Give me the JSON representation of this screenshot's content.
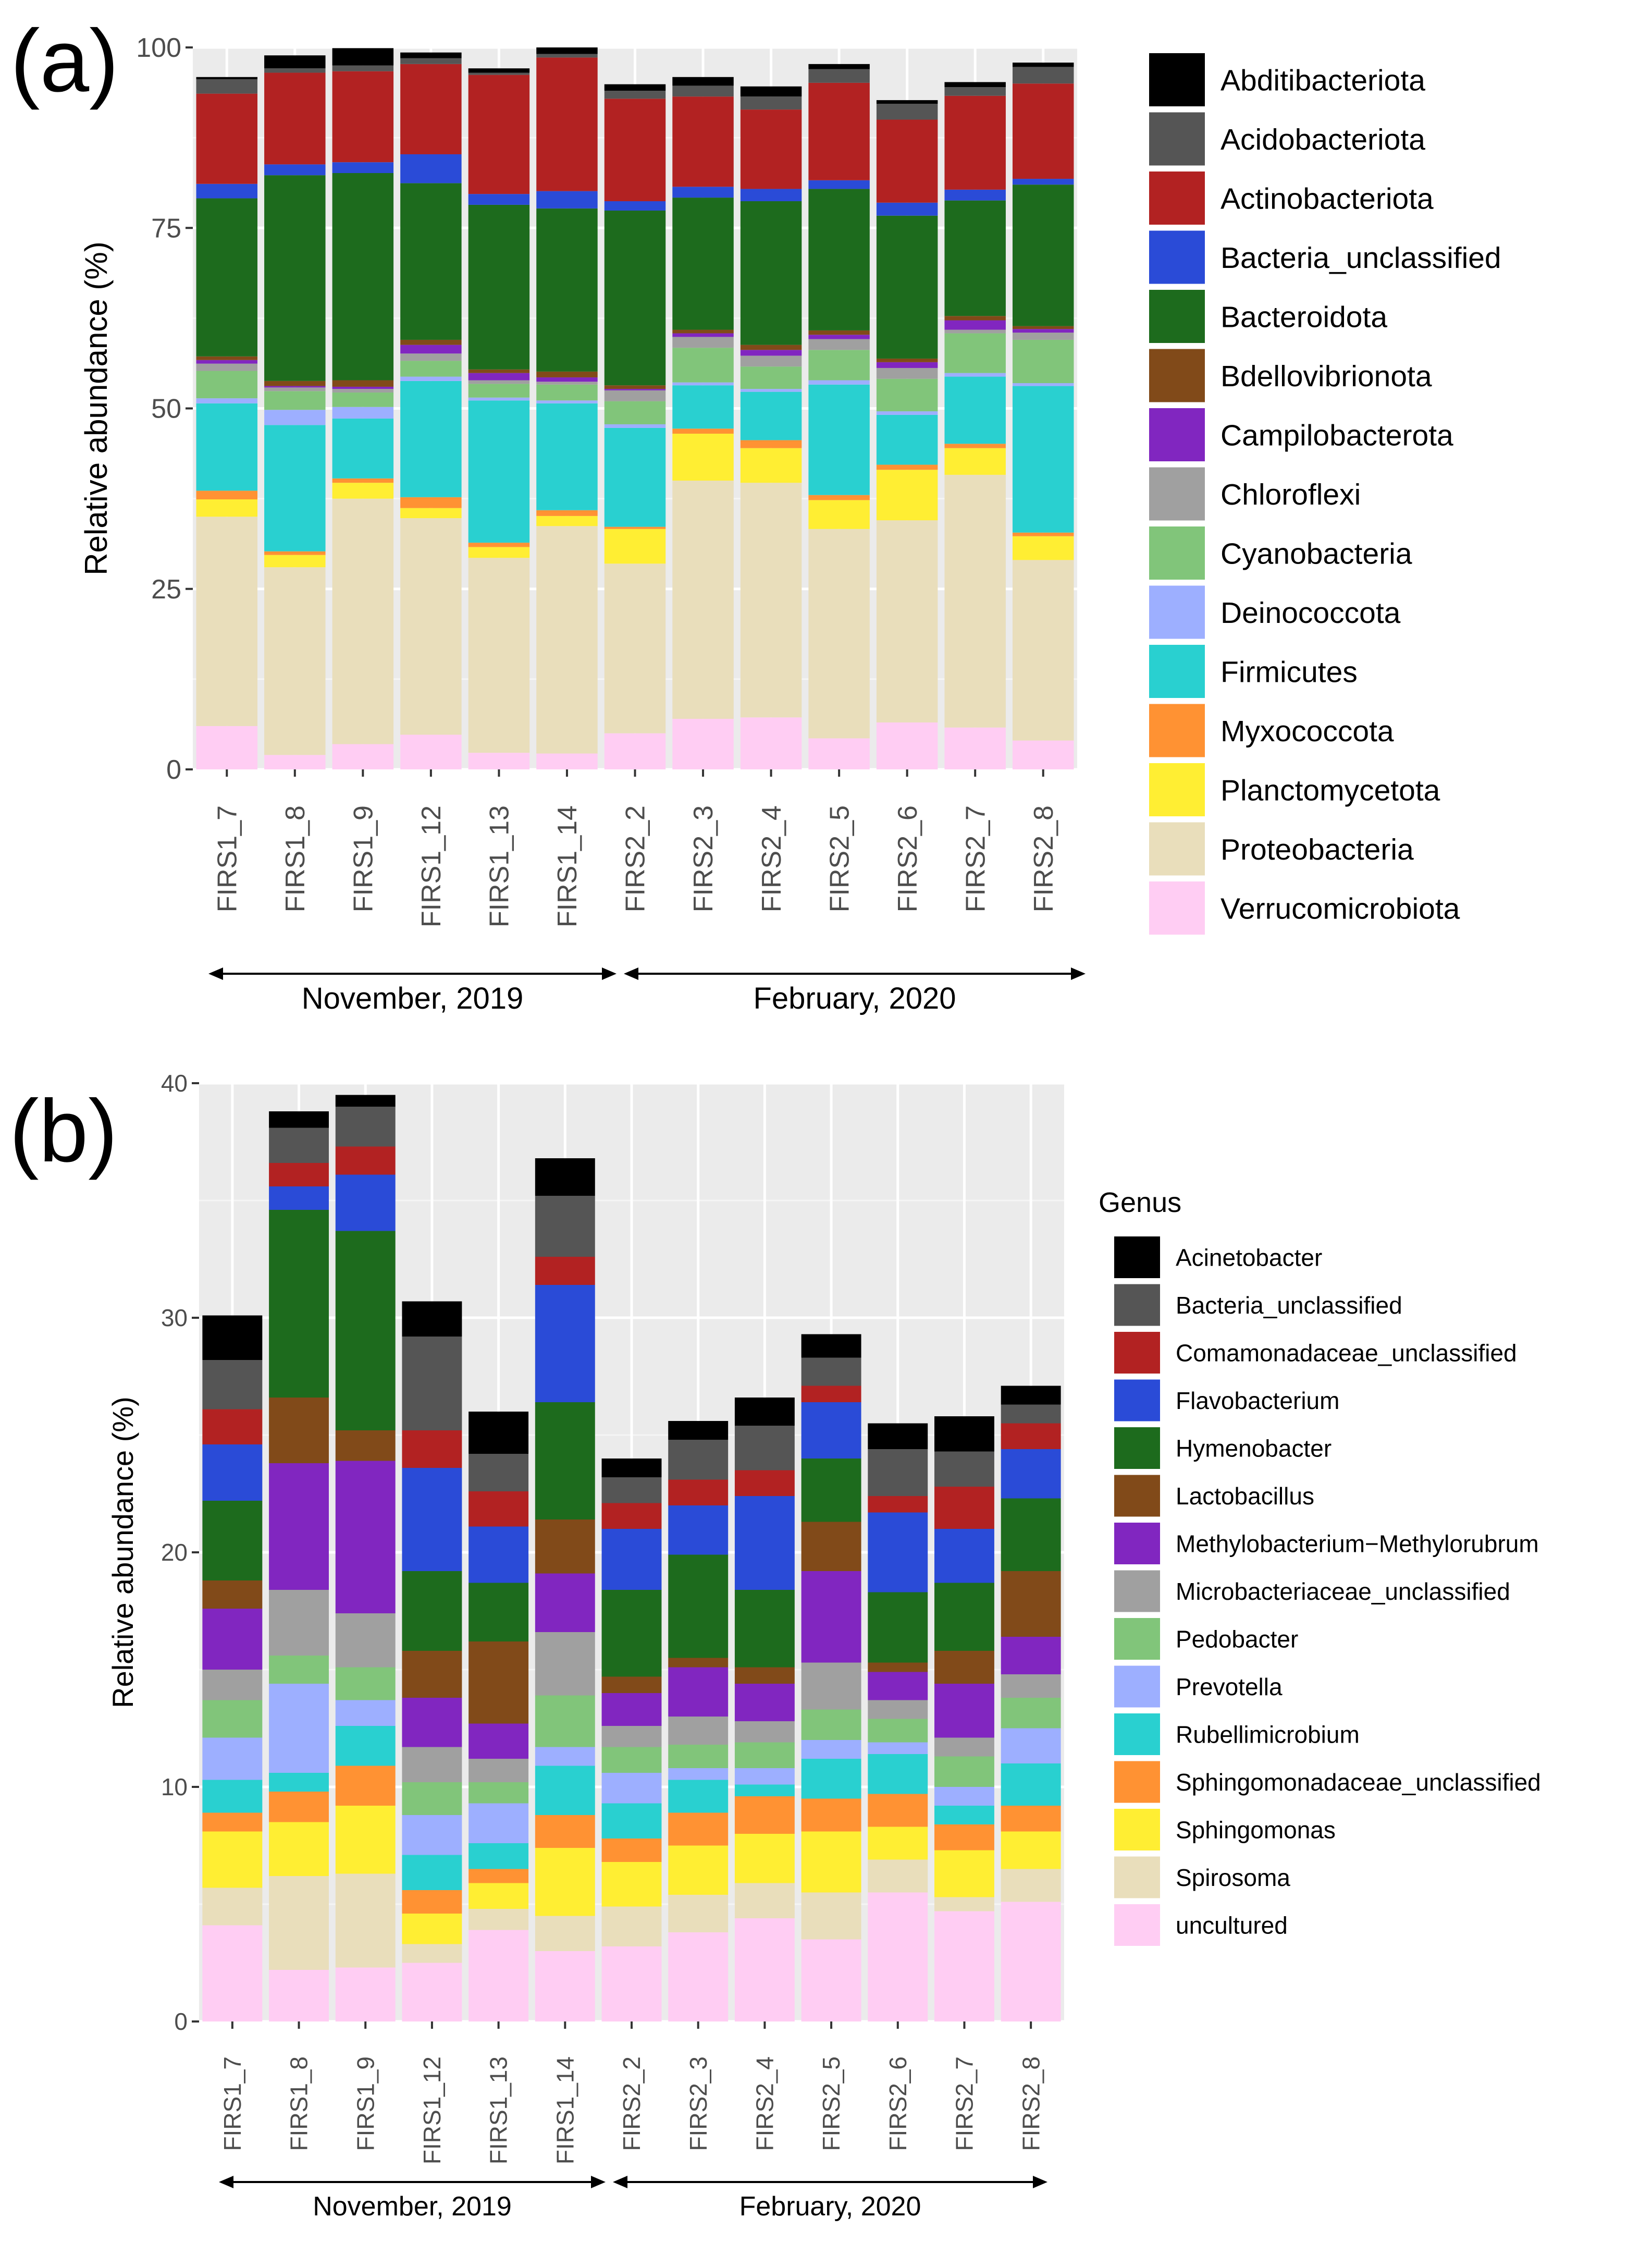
{
  "panels": [
    {
      "panel_label": "(a)",
      "legend_title": "",
      "groups": [
        {
          "label": "November, 2019",
          "from": 0,
          "to": 5
        },
        {
          "label": "February, 2020",
          "from": 6,
          "to": 12
        }
      ]
    },
    {
      "panel_label": "(b)",
      "legend_title": "Genus",
      "groups": [
        {
          "label": "November, 2019",
          "from": 0,
          "to": 5
        },
        {
          "label": "February, 2020",
          "from": 6,
          "to": 12
        }
      ]
    }
  ],
  "chart_data": [
    {
      "type": "bar",
      "stacked": true,
      "title": "",
      "xlabel": "",
      "ylabel": "Relative abundance (%)",
      "ylim": [
        0,
        100
      ],
      "yticks": [
        0,
        25,
        50,
        75,
        100
      ],
      "grid": true,
      "legend": "right",
      "categories": [
        "FIRS1_7",
        "FIRS1_8",
        "FIRS1_9",
        "FIRS1_12",
        "FIRS1_13",
        "FIRS1_14",
        "FIRS2_2",
        "FIRS2_3",
        "FIRS2_4",
        "FIRS2_5",
        "FIRS2_6",
        "FIRS2_7",
        "FIRS2_8"
      ],
      "series": [
        {
          "name": "Abditibacteriota",
          "color": "#000000",
          "values": [
            0.3,
            1.8,
            2.4,
            0.8,
            0.6,
            0.9,
            0.9,
            1.2,
            1.4,
            0.7,
            0.5,
            0.7,
            0.6
          ]
        },
        {
          "name": "Acidobacteriota",
          "color": "#555555",
          "values": [
            2.0,
            0.6,
            0.8,
            0.8,
            0.3,
            0.5,
            1.1,
            1.5,
            1.8,
            1.9,
            2.2,
            1.2,
            2.3
          ]
        },
        {
          "name": "Actinobacteriota",
          "color": "#B22222",
          "values": [
            12.5,
            12.7,
            12.6,
            12.5,
            16.5,
            18.5,
            14.2,
            12.5,
            11.0,
            13.5,
            11.5,
            13.0,
            13.2
          ]
        },
        {
          "name": "Bacteria_unclassified",
          "color": "#2A4BD7",
          "values": [
            2.0,
            1.5,
            1.5,
            4.0,
            1.5,
            2.4,
            1.3,
            1.5,
            1.7,
            1.2,
            1.8,
            1.5,
            0.8
          ]
        },
        {
          "name": "Bacteroidota",
          "color": "#1D6B1D",
          "values": [
            21.9,
            28.5,
            28.7,
            21.7,
            22.8,
            22.6,
            24.2,
            18.3,
            19.9,
            19.6,
            19.8,
            16.0,
            19.6
          ]
        },
        {
          "name": "Bdellovibrionota",
          "color": "#814A19",
          "values": [
            0.5,
            0.7,
            0.9,
            0.7,
            0.5,
            0.8,
            0.5,
            0.5,
            0.7,
            0.6,
            0.5,
            0.6,
            0.4
          ]
        },
        {
          "name": "Campilobacterota",
          "color": "#8126C0",
          "values": [
            0.5,
            0.2,
            0.3,
            1.2,
            1.0,
            0.6,
            0.2,
            0.5,
            0.8,
            0.6,
            0.8,
            1.3,
            0.5
          ]
        },
        {
          "name": "Chloroflexi",
          "color": "#A0A0A0",
          "values": [
            1.0,
            0.5,
            0.5,
            1.0,
            0.5,
            0.4,
            1.5,
            1.5,
            1.5,
            1.5,
            1.5,
            0.5,
            1.0
          ]
        },
        {
          "name": "Cyanobacteria",
          "color": "#81C57A",
          "values": [
            3.8,
            2.6,
            2.0,
            2.2,
            1.9,
            2.2,
            3.2,
            4.8,
            3.1,
            4.2,
            4.5,
            5.5,
            6.0
          ]
        },
        {
          "name": "Deinococcota",
          "color": "#9DAFFF",
          "values": [
            0.7,
            2.1,
            1.6,
            0.6,
            0.4,
            0.4,
            0.5,
            0.4,
            0.4,
            0.6,
            0.5,
            0.5,
            0.4
          ]
        },
        {
          "name": "Firmicutes",
          "color": "#29D0D0",
          "values": [
            12.1,
            17.5,
            8.3,
            16.1,
            19.7,
            14.8,
            13.7,
            6.0,
            6.7,
            15.3,
            6.9,
            9.3,
            20.3
          ]
        },
        {
          "name": "Myxococcota",
          "color": "#FF9233",
          "values": [
            1.2,
            0.5,
            0.6,
            1.5,
            0.6,
            0.8,
            0.3,
            0.7,
            1.1,
            0.7,
            0.7,
            0.6,
            0.5
          ]
        },
        {
          "name": "Planctomycetota",
          "color": "#FFEE33",
          "values": [
            2.4,
            1.7,
            2.2,
            1.4,
            1.5,
            1.4,
            4.8,
            6.5,
            4.8,
            4.0,
            7.0,
            3.7,
            3.3
          ]
        },
        {
          "name": "Proteobacteria",
          "color": "#E9DEBB",
          "values": [
            29.0,
            26.0,
            34.0,
            30.0,
            27.0,
            31.5,
            23.5,
            33.0,
            32.5,
            29.0,
            28.0,
            35.0,
            25.0
          ]
        },
        {
          "name": "Verrucomicrobiota",
          "color": "#FFCDF3",
          "values": [
            6.0,
            2.0,
            3.5,
            4.8,
            2.3,
            2.2,
            5.0,
            7.0,
            7.2,
            4.3,
            6.5,
            5.8,
            4.0
          ]
        }
      ]
    },
    {
      "type": "bar",
      "stacked": true,
      "title": "",
      "xlabel": "",
      "ylabel": "Relative abundance (%)",
      "ylim": [
        0,
        40
      ],
      "yticks": [
        0,
        10,
        20,
        30,
        40
      ],
      "grid": true,
      "legend": "right",
      "categories": [
        "FIRS1_7",
        "FIRS1_8",
        "FIRS1_9",
        "FIRS1_12",
        "FIRS1_13",
        "FIRS1_14",
        "FIRS2_2",
        "FIRS2_3",
        "FIRS2_4",
        "FIRS2_5",
        "FIRS2_6",
        "FIRS2_7",
        "FIRS2_8"
      ],
      "series": [
        {
          "name": "Acinetobacter",
          "color": "#000000",
          "values": [
            1.9,
            0.7,
            0.5,
            1.5,
            1.8,
            1.6,
            0.8,
            0.8,
            1.2,
            1.0,
            1.1,
            1.5,
            0.8
          ]
        },
        {
          "name": "Bacteria_unclassified",
          "color": "#555555",
          "values": [
            2.1,
            1.5,
            1.7,
            4.0,
            1.6,
            2.6,
            1.1,
            1.7,
            1.9,
            1.2,
            2.0,
            1.5,
            0.8
          ]
        },
        {
          "name": "Comamonadaceae_unclassified",
          "color": "#B22222",
          "values": [
            1.5,
            1.0,
            1.2,
            1.6,
            1.5,
            1.2,
            1.1,
            1.1,
            1.1,
            0.7,
            0.7,
            1.8,
            1.1
          ]
        },
        {
          "name": "Flavobacterium",
          "color": "#2A4BD7",
          "values": [
            2.4,
            1.0,
            2.4,
            4.4,
            2.4,
            5.0,
            2.6,
            2.1,
            4.0,
            2.4,
            3.4,
            2.3,
            2.1
          ]
        },
        {
          "name": "Hymenobacter",
          "color": "#1D6B1D",
          "values": [
            3.4,
            8.0,
            8.5,
            3.4,
            2.5,
            5.0,
            3.7,
            4.4,
            3.3,
            2.7,
            3.0,
            2.9,
            3.1
          ]
        },
        {
          "name": "Lactobacillus",
          "color": "#814A19",
          "values": [
            1.2,
            2.8,
            1.3,
            2.0,
            3.5,
            2.3,
            0.7,
            0.4,
            0.7,
            2.1,
            0.4,
            1.4,
            2.8
          ]
        },
        {
          "name": "Methylobacterium−Methylorubrum",
          "color": "#8126C0",
          "values": [
            2.6,
            5.4,
            6.5,
            2.1,
            1.5,
            2.5,
            1.4,
            2.1,
            1.6,
            3.9,
            1.2,
            2.3,
            1.6
          ]
        },
        {
          "name": "Microbacteriaceae_unclassified",
          "color": "#A0A0A0",
          "values": [
            1.3,
            2.8,
            2.3,
            1.5,
            1.0,
            2.7,
            0.9,
            1.2,
            0.9,
            2.0,
            0.8,
            0.8,
            1.0
          ]
        },
        {
          "name": "Pedobacter",
          "color": "#81C57A",
          "values": [
            1.6,
            1.2,
            1.4,
            1.4,
            0.9,
            2.2,
            1.1,
            1.0,
            1.1,
            1.3,
            1.0,
            1.3,
            1.3
          ]
        },
        {
          "name": "Prevotella",
          "color": "#9DAFFF",
          "values": [
            1.8,
            3.8,
            1.1,
            1.7,
            1.7,
            0.8,
            1.3,
            0.5,
            0.7,
            0.8,
            0.5,
            0.8,
            1.5
          ]
        },
        {
          "name": "Rubellimicrobium",
          "color": "#29D0D0",
          "values": [
            1.4,
            0.8,
            1.7,
            1.5,
            1.1,
            2.1,
            1.5,
            1.4,
            0.5,
            1.7,
            1.7,
            0.8,
            1.8
          ]
        },
        {
          "name": "Sphingomonadaceae_unclassified",
          "color": "#FF9233",
          "values": [
            0.8,
            1.3,
            1.7,
            1.0,
            0.6,
            1.4,
            1.0,
            1.4,
            1.6,
            1.4,
            1.4,
            1.1,
            1.1
          ]
        },
        {
          "name": "Sphingomonas",
          "color": "#FFEE33",
          "values": [
            2.4,
            2.3,
            2.9,
            1.3,
            1.1,
            2.9,
            1.9,
            2.1,
            2.1,
            2.6,
            1.4,
            2.0,
            1.6
          ]
        },
        {
          "name": "Spirosoma",
          "color": "#E9DEBB",
          "values": [
            1.6,
            4.0,
            4.0,
            0.8,
            0.9,
            1.5,
            1.7,
            1.6,
            1.5,
            2.0,
            1.4,
            0.6,
            1.4
          ]
        },
        {
          "name": "uncultured",
          "color": "#FFCDF3",
          "values": [
            4.1,
            2.2,
            2.3,
            2.5,
            3.9,
            3.0,
            3.2,
            3.8,
            4.4,
            3.5,
            5.5,
            4.7,
            5.1
          ]
        }
      ]
    }
  ]
}
